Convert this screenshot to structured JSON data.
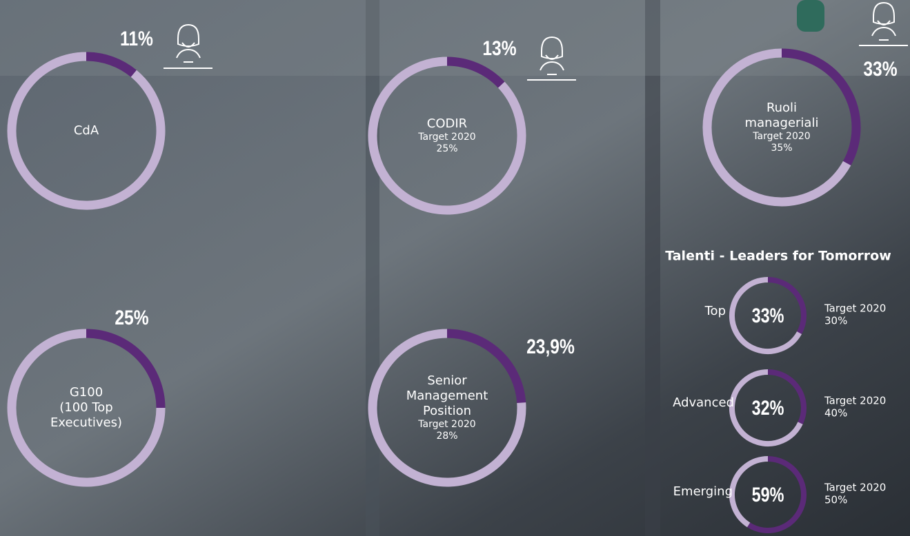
{
  "chart_data": [
    {
      "type": "donut",
      "title": [
        "CdA"
      ],
      "values": [
        11,
        89
      ],
      "value_labels": [
        "11%",
        null
      ],
      "colors": [
        "#5b2a78",
        "#c3b2d3"
      ]
    },
    {
      "type": "donut",
      "title": [
        "CODIR"
      ],
      "target": [
        "Target 2020",
        "25%"
      ],
      "values": [
        13,
        87
      ],
      "value_labels": [
        "13%",
        null
      ],
      "colors": [
        "#5b2a78",
        "#c3b2d3"
      ]
    },
    {
      "type": "donut",
      "title": [
        "Ruoli",
        "manageriali"
      ],
      "target": [
        "Target 2020",
        "35%"
      ],
      "values": [
        33,
        67
      ],
      "value_labels": [
        "33%",
        null
      ],
      "colors": [
        "#5b2a78",
        "#c3b2d3"
      ]
    },
    {
      "type": "donut",
      "title": [
        "G100",
        "(100 Top",
        "Executives)"
      ],
      "values": [
        25,
        75
      ],
      "value_labels": [
        "25%",
        null
      ],
      "colors": [
        "#5b2a78",
        "#c3b2d3"
      ]
    },
    {
      "type": "donut",
      "title": [
        "Senior",
        "Management",
        "Position"
      ],
      "target": [
        "Target 2020",
        "28%"
      ],
      "values": [
        23.9,
        76.1
      ],
      "value_labels": [
        "23,9%",
        null
      ],
      "colors": [
        "#5b2a78",
        "#c3b2d3"
      ]
    },
    {
      "type": "donut",
      "title": [
        "Top"
      ],
      "target": [
        "Target 2020",
        "30%"
      ],
      "values": [
        33,
        67
      ],
      "value_labels": [
        "33%",
        null
      ],
      "colors": [
        "#5b2a78",
        "#c3b2d3"
      ]
    },
    {
      "type": "donut",
      "title": [
        "Advanced"
      ],
      "target": [
        "Target 2020",
        "40%"
      ],
      "values": [
        32,
        68
      ],
      "value_labels": [
        "32%",
        null
      ],
      "colors": [
        "#5b2a78",
        "#c3b2d3"
      ]
    },
    {
      "type": "donut",
      "title": [
        "Emerging"
      ],
      "target": [
        "Target 2020",
        "50%"
      ],
      "values": [
        59,
        41
      ],
      "value_labels": [
        "59%",
        null
      ],
      "colors": [
        "#5b2a78",
        "#c3b2d3"
      ]
    }
  ],
  "talenti": {
    "heading": "Talenti - Leaders for Tomorrow"
  }
}
